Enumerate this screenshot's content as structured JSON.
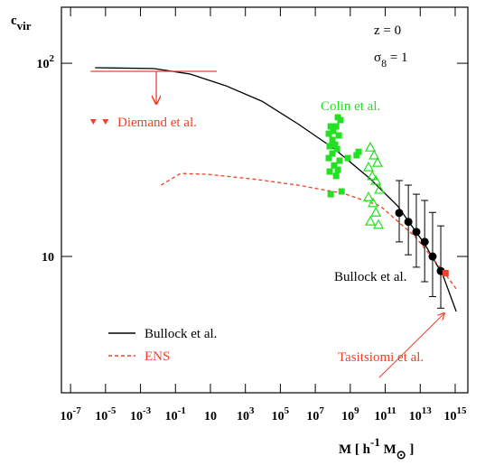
{
  "chart_data": {
    "type": "scatter",
    "y_label": [
      {
        "text": "c"
      },
      {
        "sub": "vir"
      }
    ],
    "x_label": [
      {
        "text": "M [ h"
      },
      {
        "sup": "-1"
      },
      {
        "text": " M"
      },
      {
        "sub": "⊙"
      },
      {
        "text": " ]"
      }
    ],
    "annotations": [
      [
        {
          "text": "z = 0"
        }
      ],
      [
        {
          "text": "σ"
        },
        {
          "sub": "8"
        },
        {
          "text": " = 1"
        }
      ]
    ],
    "xscale": "log",
    "yscale": "log",
    "xlim": [
      3e-08,
      5300000000000000.0
    ],
    "ylim": [
      1.97,
      195
    ],
    "xticks": [
      {
        "value": 1e-07,
        "label": "10",
        "exponent": "-7"
      },
      {
        "value": 1e-05,
        "label": "10",
        "exponent": "-5"
      },
      {
        "value": 0.001,
        "label": "10",
        "exponent": "-3"
      },
      {
        "value": 0.1,
        "label": "10",
        "exponent": "-1"
      },
      10,
      {
        "value": 1000.0,
        "label": "10",
        "exponent": "3"
      },
      {
        "value": 100000.0,
        "label": "10",
        "exponent": "5"
      },
      {
        "value": 10000000.0,
        "label": "10",
        "exponent": "7"
      },
      {
        "value": 1000000000.0,
        "label": "10",
        "exponent": "9"
      },
      {
        "value": 100000000000.0,
        "label": "10",
        "exponent": "11"
      },
      {
        "value": 10000000000000.0,
        "label": "10",
        "exponent": "13"
      },
      {
        "value": 1000000000000000.0,
        "label": "10",
        "exponent": "15"
      }
    ],
    "yticks": [
      10,
      {
        "value": 100,
        "label": "10",
        "exponent": "2"
      }
    ],
    "legend": "lower left",
    "series": [
      {
        "name": "Bullock et al.",
        "type": "line",
        "color": "#000000",
        "x": [
          2.5e-06,
          0.0056,
          0.66,
          76,
          8900.0,
          1000000.0,
          126000000.0,
          14000000000.0,
          500000000000.0,
          18000000000000.0,
          200000000000000.0,
          1150000000000000.0
        ],
        "values": [
          94.8,
          93.9,
          88,
          76.5,
          63.6,
          48.6,
          36,
          25.2,
          18.3,
          11.6,
          7.98,
          5.19
        ]
      },
      {
        "name": "ENS",
        "type": "line",
        "dashed": true,
        "color": "#f0402a",
        "x": [
          0.0148,
          0.2,
          7.1,
          2500.0,
          1000000.0,
          400000000.0,
          50000000000.0,
          5000000000000.0,
          200000000000000.0,
          1150000000000000.0
        ],
        "values": [
          23.4,
          26.9,
          26.6,
          25.2,
          23.4,
          21.2,
          18.3,
          12.7,
          8.4,
          6.8
        ]
      },
      {
        "label": "Bullock et al.",
        "type": "errorbar",
        "marker": "circle",
        "color": "#000000",
        "x": [
          630000000000.0,
          2100000000000.0,
          6000000000000.0,
          18000000000000.0,
          51000000000000.0,
          150000000000000.0
        ],
        "values": [
          16.8,
          15.1,
          13.4,
          11.9,
          10,
          8.4
        ],
        "lower": [
          11.9,
          10.2,
          8.8,
          7.4,
          6.2,
          5.4
        ],
        "upper": [
          24.7,
          23.4,
          21,
          19.5,
          16.9,
          14.4
        ]
      },
      {
        "label": "Tasitsiomi et al.",
        "type": "scatter",
        "marker": "square",
        "color": "#f0402a",
        "x": [
          280000000000000.0
        ],
        "values": [
          8.2
        ]
      },
      {
        "label": "Colin et al.",
        "type": "scatter",
        "marker": "square",
        "color": "#22e022",
        "x": [
          195000000.0,
          275000000.0,
          76000000.0,
          155000000.0,
          107000000.0,
          59000000.0,
          220000000.0,
          95000000.0,
          135000000.0,
          66000000.0,
          174000000.0,
          95000000.0,
          59000000.0,
          245000000.0,
          120000000.0,
          195000000.0,
          66000000.0,
          155000000.0,
          76000000.0,
          320000000.0,
          720000000.0,
          3000000000.0,
          2300000000.0
        ],
        "values": [
          52.5,
          50.8,
          47.1,
          47.1,
          44.6,
          43.2,
          42.3,
          40.1,
          37.9,
          37.2,
          36,
          34.1,
          32.3,
          31.3,
          29.6,
          28.1,
          27.5,
          26.1,
          21,
          21.7,
          32.3,
          34.8,
          33.4
        ]
      },
      {
        "type": "scatter",
        "marker": "triangle-open",
        "color": "#22e022",
        "x": [
          14000000000.0,
          23000000000.0,
          36000000000.0,
          11000000000.0,
          18000000000.0,
          29000000000.0,
          47000000000.0,
          11000000000.0,
          20000000000.0,
          29000000000.0,
          41000000000.0,
          14000000000.0
        ],
        "values": [
          36.7,
          33.4,
          30.6,
          29,
          26.1,
          24.7,
          22.2,
          20.3,
          18.9,
          16.9,
          14.6,
          15.2
        ]
      },
      {
        "label": "Diemand et al.",
        "type": "scatter",
        "marker": "triangle-down",
        "color": "#f0402a",
        "x": [
          2e-06,
          1e-05
        ],
        "values": [
          49.7,
          49.7
        ]
      },
      {
        "type": "upper-limit",
        "color": "#f0402a",
        "x_range": [
          1.4e-06,
          23
        ],
        "values": [
          90.8
        ],
        "arrow_x": 0.008,
        "arrow_to": 61.6
      }
    ]
  }
}
